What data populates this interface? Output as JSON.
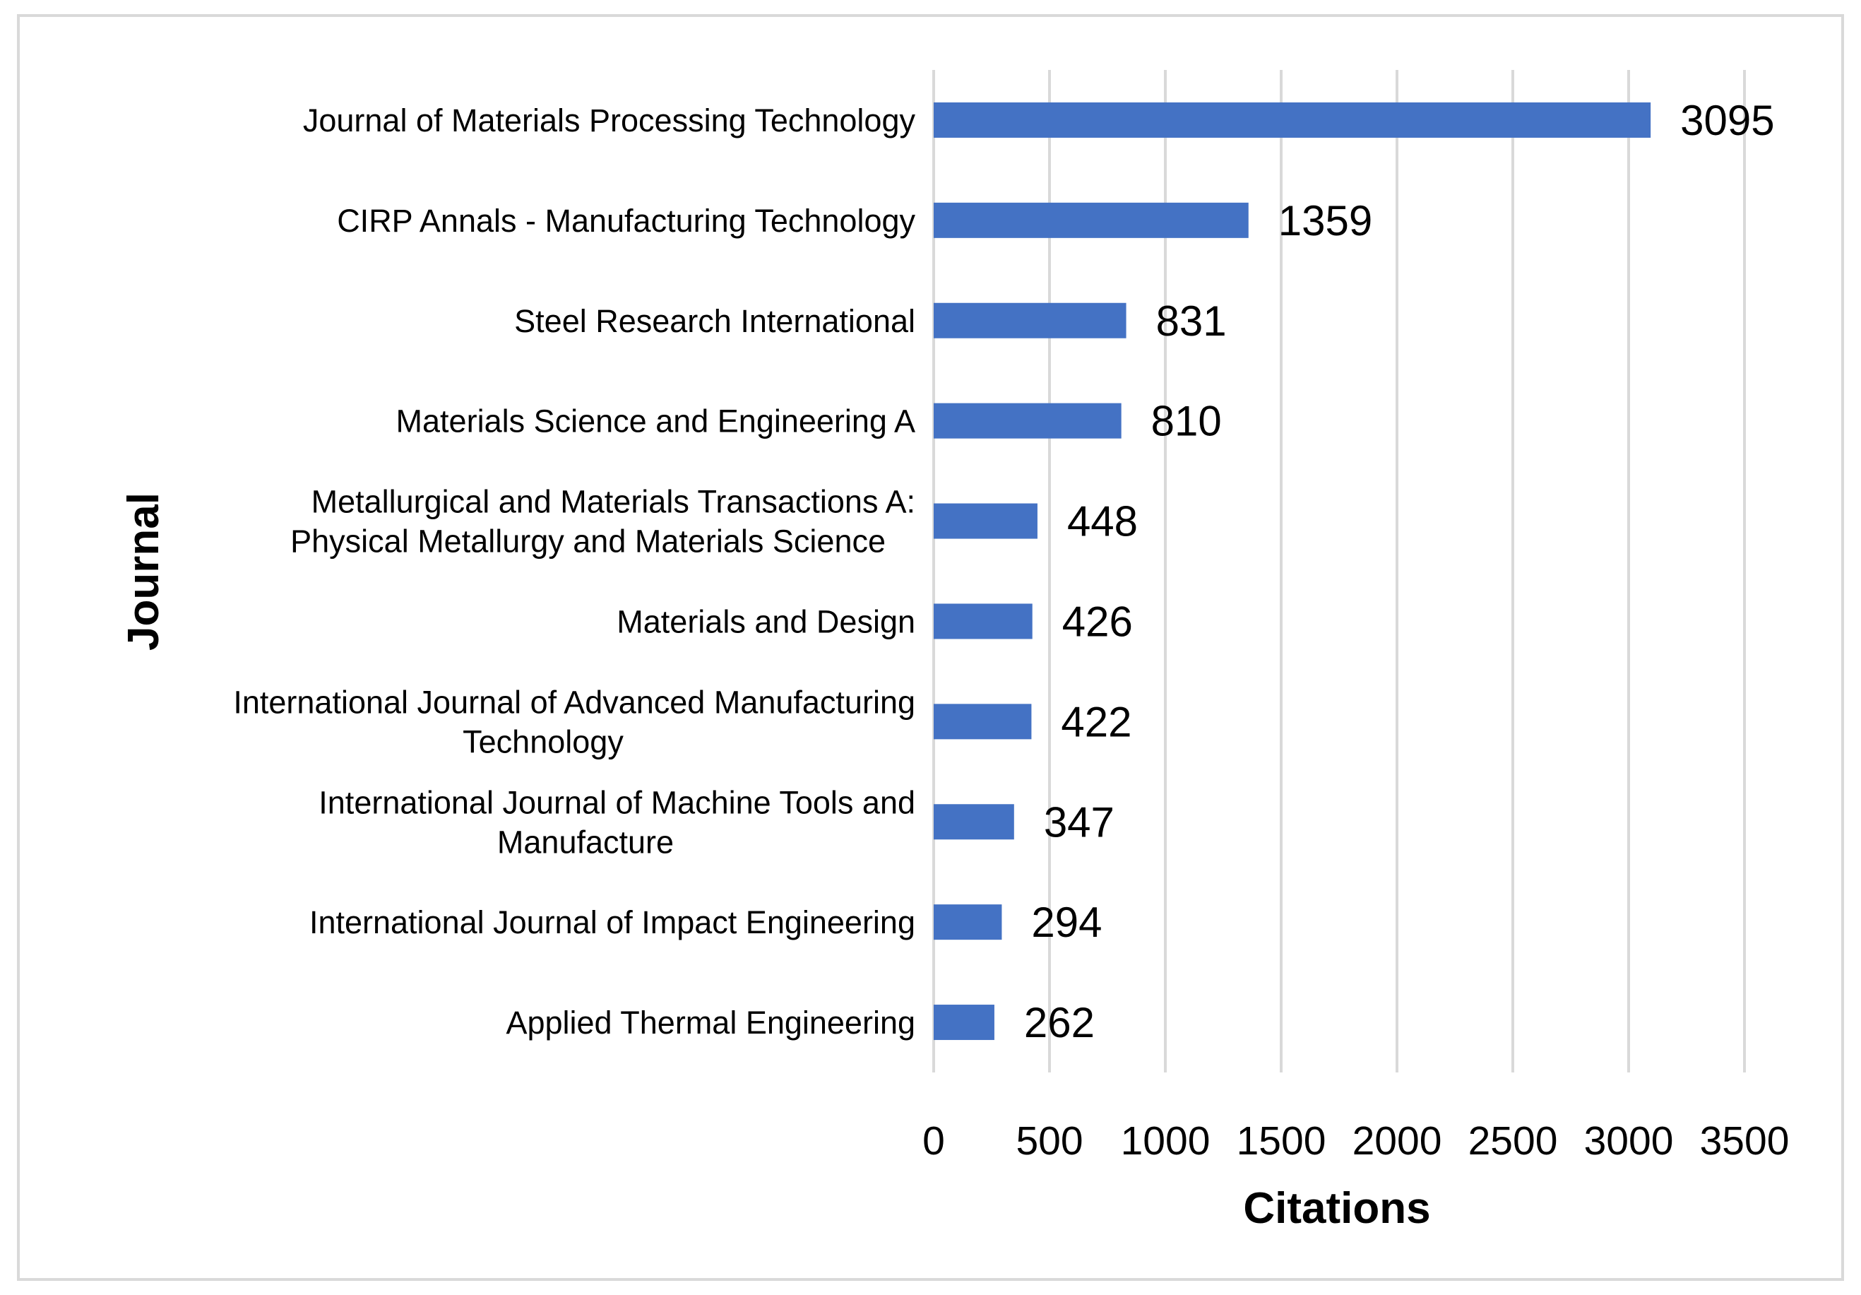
{
  "chart_data": {
    "type": "bar",
    "orientation": "horizontal",
    "title": "",
    "xlabel": "Citations",
    "ylabel": "Journal",
    "xlim": [
      0,
      3500
    ],
    "x_ticks": [
      0,
      500,
      1000,
      1500,
      2000,
      2500,
      3000,
      3500
    ],
    "grid": "vertical",
    "data_labels": true,
    "bar_color": "#4472c4",
    "categories": [
      [
        "Journal of Materials Processing Technology"
      ],
      [
        "CIRP Annals - Manufacturing Technology"
      ],
      [
        "Steel Research International"
      ],
      [
        "Materials Science and Engineering A"
      ],
      [
        "Metallurgical and Materials Transactions A:",
        "Physical Metallurgy and Materials Science"
      ],
      [
        "Materials and Design"
      ],
      [
        "International Journal of Advanced Manufacturing",
        "Technology"
      ],
      [
        "International Journal of Machine Tools and",
        "Manufacture"
      ],
      [
        "International Journal of Impact Engineering"
      ],
      [
        "Applied Thermal Engineering"
      ]
    ],
    "values": [
      3095,
      1359,
      831,
      810,
      448,
      426,
      422,
      347,
      294,
      262
    ]
  }
}
